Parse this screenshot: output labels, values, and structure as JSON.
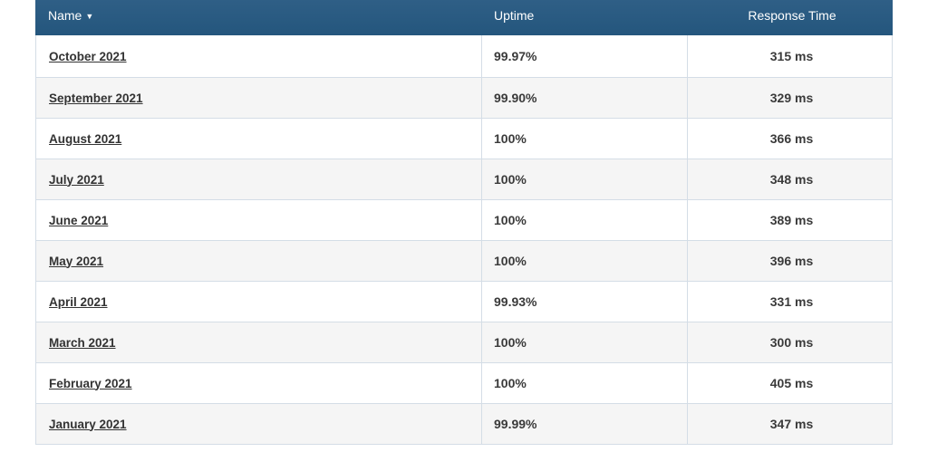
{
  "table": {
    "headers": {
      "name": "Name",
      "uptime": "Uptime",
      "response_time": "Response Time"
    },
    "sort_indicator": "▼",
    "rows": [
      {
        "name": "October 2021",
        "uptime": "99.97%",
        "response_time": "315 ms"
      },
      {
        "name": "September 2021",
        "uptime": "99.90%",
        "response_time": "329 ms"
      },
      {
        "name": "August 2021",
        "uptime": "100%",
        "response_time": "366 ms"
      },
      {
        "name": "July 2021",
        "uptime": "100%",
        "response_time": "348 ms"
      },
      {
        "name": "June 2021",
        "uptime": "100%",
        "response_time": "389 ms"
      },
      {
        "name": "May 2021",
        "uptime": "100%",
        "response_time": "396 ms"
      },
      {
        "name": "April 2021",
        "uptime": "99.93%",
        "response_time": "331 ms"
      },
      {
        "name": "March 2021",
        "uptime": "100%",
        "response_time": "300 ms"
      },
      {
        "name": "February 2021",
        "uptime": "100%",
        "response_time": "405 ms"
      },
      {
        "name": "January 2021",
        "uptime": "99.99%",
        "response_time": "347 ms"
      }
    ]
  },
  "colors": {
    "header_bg": "#2a5a81",
    "header_text": "#ffffff",
    "row_alt_bg": "#f5f5f5",
    "border": "#d4dde6"
  }
}
